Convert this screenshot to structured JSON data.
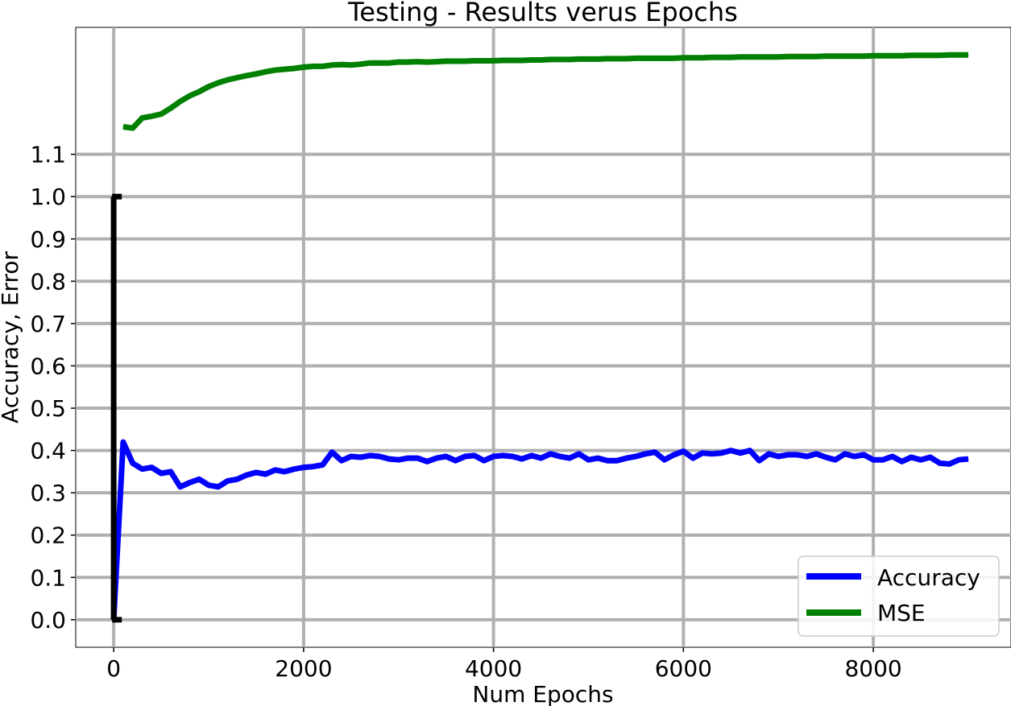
{
  "chart_data": {
    "type": "line",
    "title": "Testing - Results verus Epochs",
    "xlabel": "Num Epochs",
    "ylabel": "Accuracy, Error",
    "xlim": [
      -400,
      9450
    ],
    "ylim": [
      -0.065,
      1.4
    ],
    "xticks": [
      0,
      2000,
      4000,
      6000,
      8000
    ],
    "xtick_labels": [
      "0",
      "2000",
      "4000",
      "6000",
      "8000"
    ],
    "yticks": [
      0.0,
      0.1,
      0.2,
      0.3,
      0.4,
      0.5,
      0.6,
      0.7,
      0.8,
      0.9,
      1.0,
      1.1
    ],
    "ytick_labels": [
      "0.0",
      "0.1",
      "0.2",
      "0.3",
      "0.4",
      "0.5",
      "0.6",
      "0.7",
      "0.8",
      "0.9",
      "1.0",
      "1.1"
    ],
    "grid": true,
    "legend_position": "bottom-right",
    "series": [
      {
        "name": "Accuracy",
        "color": "#0000ff",
        "x": [
          0,
          100,
          200,
          300,
          400,
          500,
          600,
          700,
          800,
          900,
          1000,
          1100,
          1200,
          1300,
          1400,
          1500,
          1600,
          1700,
          1800,
          1900,
          2000,
          2100,
          2200,
          2300,
          2400,
          2500,
          2600,
          2700,
          2800,
          2900,
          3000,
          3100,
          3200,
          3300,
          3400,
          3500,
          3600,
          3700,
          3800,
          3900,
          4000,
          4100,
          4200,
          4300,
          4400,
          4500,
          4600,
          4700,
          4800,
          4900,
          5000,
          5100,
          5200,
          5300,
          5400,
          5500,
          5600,
          5700,
          5800,
          5900,
          6000,
          6100,
          6200,
          6300,
          6400,
          6500,
          6600,
          6700,
          6800,
          6900,
          7000,
          7100,
          7200,
          7300,
          7400,
          7500,
          7600,
          7700,
          7800,
          7900,
          8000,
          8100,
          8200,
          8300,
          8400,
          8500,
          8600,
          8700,
          8800,
          8900,
          9000
        ],
        "values": [
          0.0,
          0.42,
          0.37,
          0.356,
          0.36,
          0.346,
          0.35,
          0.314,
          0.324,
          0.332,
          0.318,
          0.314,
          0.328,
          0.332,
          0.342,
          0.348,
          0.344,
          0.354,
          0.35,
          0.356,
          0.36,
          0.362,
          0.366,
          0.396,
          0.376,
          0.386,
          0.384,
          0.388,
          0.386,
          0.38,
          0.378,
          0.382,
          0.382,
          0.374,
          0.382,
          0.386,
          0.376,
          0.386,
          0.388,
          0.376,
          0.386,
          0.388,
          0.386,
          0.38,
          0.388,
          0.382,
          0.392,
          0.386,
          0.382,
          0.392,
          0.378,
          0.382,
          0.376,
          0.376,
          0.382,
          0.386,
          0.392,
          0.396,
          0.378,
          0.39,
          0.398,
          0.382,
          0.394,
          0.392,
          0.394,
          0.4,
          0.394,
          0.4,
          0.376,
          0.392,
          0.386,
          0.39,
          0.39,
          0.386,
          0.392,
          0.384,
          0.378,
          0.392,
          0.386,
          0.39,
          0.378,
          0.378,
          0.386,
          0.374,
          0.384,
          0.378,
          0.384,
          0.37,
          0.368,
          0.378,
          0.38
        ]
      },
      {
        "name": "MSE",
        "color": "#008000",
        "x": [
          100,
          200,
          300,
          400,
          500,
          600,
          700,
          800,
          900,
          1000,
          1100,
          1200,
          1300,
          1400,
          1500,
          1600,
          1700,
          1800,
          1900,
          2000,
          2100,
          2200,
          2300,
          2400,
          2500,
          2600,
          2700,
          2800,
          2900,
          3000,
          3100,
          3200,
          3300,
          3400,
          3500,
          3600,
          3700,
          3800,
          3900,
          4000,
          4100,
          4200,
          4300,
          4400,
          4500,
          4600,
          4700,
          4800,
          4900,
          5000,
          5100,
          5200,
          5300,
          5400,
          5500,
          5600,
          5700,
          5800,
          5900,
          6000,
          6100,
          6200,
          6300,
          6400,
          6500,
          6600,
          6700,
          6800,
          6900,
          7000,
          7100,
          7200,
          7300,
          7400,
          7500,
          7600,
          7700,
          7800,
          7900,
          8000,
          8100,
          8200,
          8300,
          8400,
          8500,
          8600,
          8700,
          8800,
          8900,
          9000
        ],
        "values": [
          1.165,
          1.162,
          1.186,
          1.19,
          1.195,
          1.209,
          1.225,
          1.238,
          1.248,
          1.26,
          1.269,
          1.276,
          1.281,
          1.286,
          1.29,
          1.295,
          1.299,
          1.301,
          1.303,
          1.306,
          1.308,
          1.308,
          1.311,
          1.312,
          1.311,
          1.313,
          1.316,
          1.316,
          1.316,
          1.318,
          1.318,
          1.319,
          1.318,
          1.319,
          1.32,
          1.32,
          1.32,
          1.321,
          1.321,
          1.321,
          1.322,
          1.322,
          1.322,
          1.323,
          1.323,
          1.324,
          1.324,
          1.324,
          1.325,
          1.325,
          1.325,
          1.326,
          1.326,
          1.326,
          1.327,
          1.327,
          1.327,
          1.327,
          1.327,
          1.328,
          1.328,
          1.328,
          1.329,
          1.329,
          1.329,
          1.33,
          1.33,
          1.33,
          1.33,
          1.33,
          1.331,
          1.331,
          1.331,
          1.331,
          1.332,
          1.332,
          1.332,
          1.332,
          1.332,
          1.333,
          1.333,
          1.333,
          1.333,
          1.334,
          1.334,
          1.334,
          1.334,
          1.335,
          1.335,
          1.335
        ]
      },
      {
        "color": "#000000",
        "x": [
          0,
          0
        ],
        "values": [
          0.0,
          1.0
        ]
      }
    ]
  }
}
